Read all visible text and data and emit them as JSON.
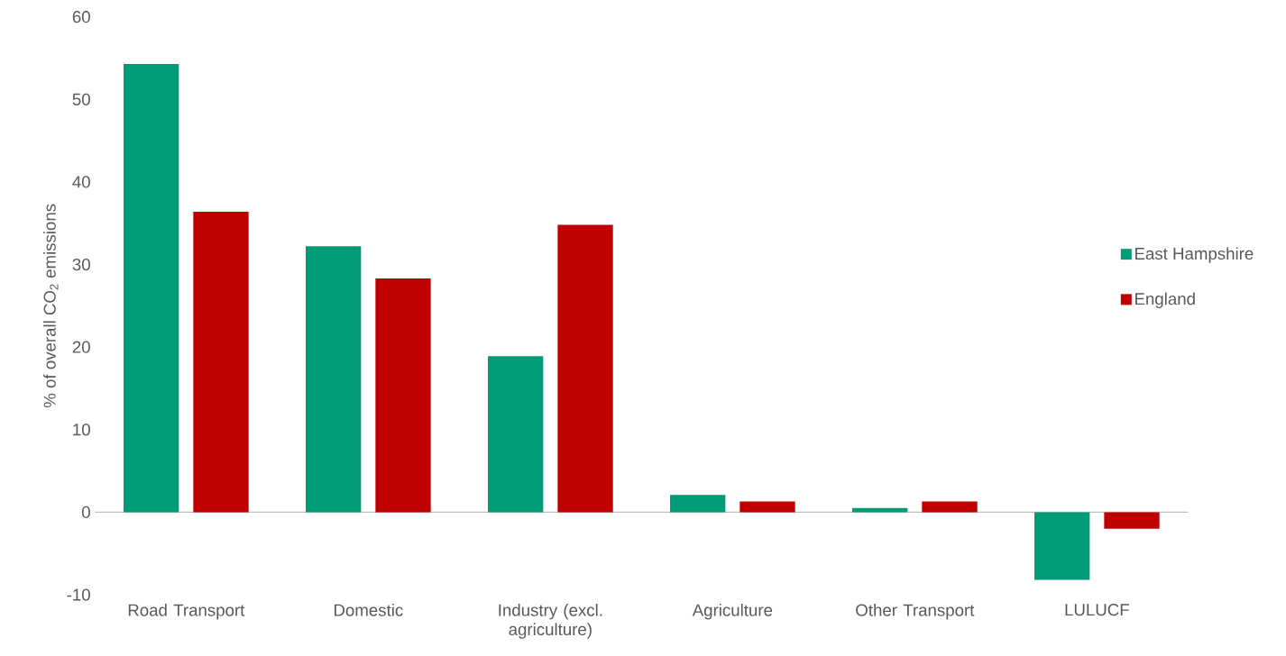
{
  "chart_data": {
    "type": "bar",
    "ylabel": "% of overall CO$_{2}$ emissions",
    "categories": [
      "Road Transport",
      "Domestic",
      "Industry (excl. agriculture)",
      "Agriculture",
      "Other Transport",
      "LULUCF"
    ],
    "series": [
      {
        "name": "East Hampshire",
        "color": "#009B77",
        "values": [
          54.3,
          32.2,
          18.9,
          2.1,
          0.5,
          -8.2
        ]
      },
      {
        "name": "England",
        "color": "#C00000",
        "values": [
          36.4,
          28.3,
          34.8,
          1.3,
          1.3,
          -2.0
        ]
      }
    ],
    "ylim": [
      -10,
      60
    ],
    "yticks": [
      -10,
      0,
      10,
      20,
      30,
      40,
      50,
      60
    ],
    "legend": "right"
  }
}
